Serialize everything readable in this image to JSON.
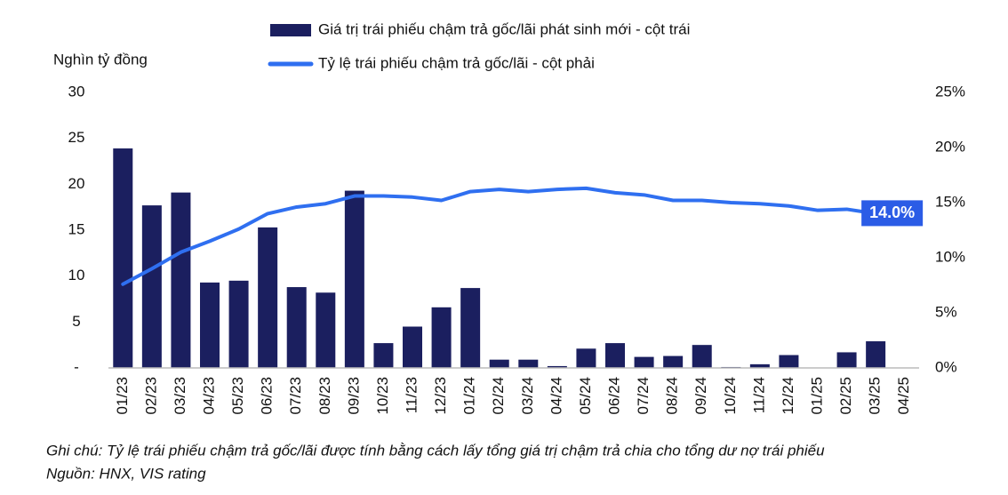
{
  "chart_data": {
    "type": "bar_line",
    "y_label": "Nghìn tỷ đồng",
    "categories": [
      "01/23",
      "02/23",
      "03/23",
      "04/23",
      "05/23",
      "06/23",
      "07/23",
      "08/23",
      "09/23",
      "10/23",
      "11/23",
      "12/23",
      "01/24",
      "02/24",
      "03/24",
      "04/24",
      "05/24",
      "06/24",
      "07/24",
      "08/24",
      "09/24",
      "10/24",
      "11/24",
      "12/24",
      "01/25",
      "02/25",
      "03/25",
      "04/25"
    ],
    "series": [
      {
        "name": "Giá trị trái phiếu chậm trả gốc/lãi phát sinh mới - cột trái",
        "color": "#1b1f5f",
        "kind": "bar",
        "values": [
          23.9,
          17.7,
          19.1,
          9.3,
          9.5,
          15.3,
          8.8,
          8.2,
          19.3,
          2.7,
          4.5,
          6.6,
          8.7,
          0.9,
          0.9,
          0.2,
          2.1,
          2.7,
          1.2,
          1.3,
          2.5,
          0.1,
          0.4,
          1.4,
          0,
          1.7,
          2.9,
          null
        ]
      },
      {
        "name": "Tỷ lệ trái phiếu chậm trả gốc/lãi - cột phải",
        "color": "#2f6ff0",
        "kind": "line",
        "axis": "y2",
        "values": [
          7.6,
          9.0,
          10.5,
          11.5,
          12.6,
          14.0,
          14.6,
          14.9,
          15.6,
          15.6,
          15.5,
          15.2,
          16.0,
          16.2,
          16.0,
          16.2,
          16.3,
          15.9,
          15.7,
          15.2,
          15.2,
          15.0,
          14.9,
          14.7,
          14.3,
          14.4,
          14.0,
          null
        ],
        "value_labels": [
          null,
          null,
          null,
          null,
          null,
          null,
          null,
          null,
          null,
          null,
          null,
          null,
          null,
          null,
          null,
          null,
          null,
          null,
          null,
          null,
          null,
          null,
          null,
          null,
          null,
          null,
          "14.0%",
          null
        ]
      }
    ],
    "ylim": [
      0,
      30
    ],
    "yticks": [
      {
        "value": 0,
        "label": "-"
      },
      5,
      10,
      15,
      20,
      25,
      30
    ],
    "y2lim": [
      0,
      25
    ],
    "y2ticks": [
      {
        "value": 0,
        "label": "0%"
      },
      {
        "value": 5,
        "label": "5%"
      },
      {
        "value": 10,
        "label": "10%"
      },
      {
        "value": 15,
        "label": "15%"
      },
      {
        "value": 20,
        "label": "20%"
      },
      {
        "value": 25,
        "label": "25%"
      }
    ],
    "grid": false,
    "notes": [
      "Ghi chú: Tỷ lệ trái phiếu chậm trả gốc/lãi được tính bằng cách lấy tổng giá trị chậm trả chia cho tổng dư nợ trái phiếu",
      "Nguồn: HNX, VIS rating"
    ]
  }
}
